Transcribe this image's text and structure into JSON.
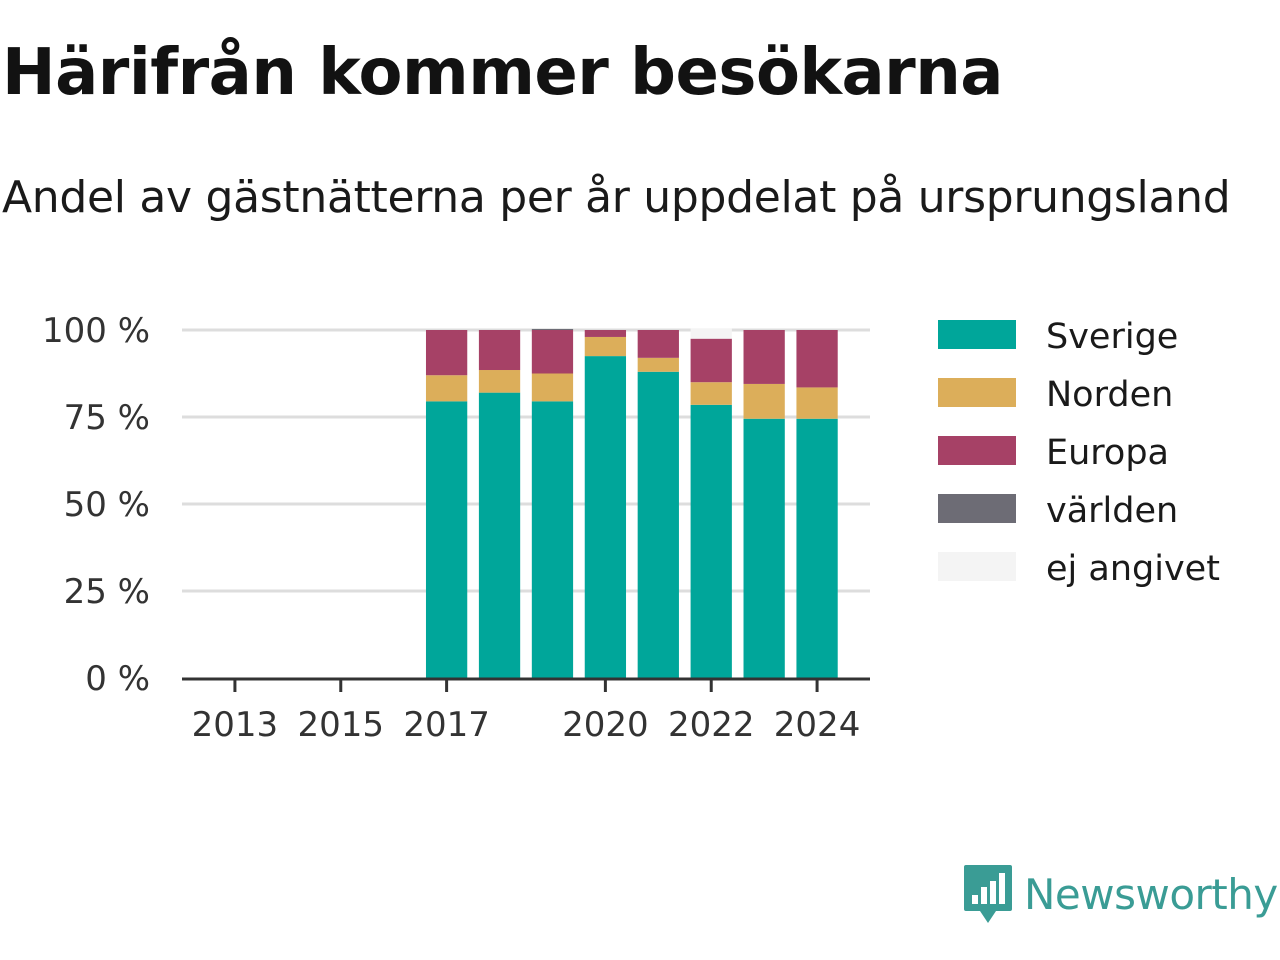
{
  "title": "Härifrån kommer besökarna",
  "subtitle": "Andel av gästnätterna per år uppdelat på ursprungsland",
  "logo_text": "Newsworthy",
  "chart_data": {
    "type": "bar",
    "stacked": true,
    "title": "Härifrån kommer besökarna",
    "subtitle": "Andel av gästnätterna per år uppdelat på ursprungsland",
    "x_range": [
      2012,
      2025
    ],
    "y_range": [
      0,
      100
    ],
    "y_ticks": [
      {
        "value": 0,
        "label": "0 %"
      },
      {
        "value": 25,
        "label": "25 %"
      },
      {
        "value": 50,
        "label": "50 %"
      },
      {
        "value": 75,
        "label": "75 %"
      },
      {
        "value": 100,
        "label": "100 %"
      }
    ],
    "x_ticks": [
      {
        "value": 2013,
        "label": "2013"
      },
      {
        "value": 2015,
        "label": "2015"
      },
      {
        "value": 2017,
        "label": "2017"
      },
      {
        "value": 2020,
        "label": "2020"
      },
      {
        "value": 2022,
        "label": "2022"
      },
      {
        "value": 2024,
        "label": "2024"
      }
    ],
    "grid": true,
    "legend_position": "right",
    "categories": [
      2017,
      2018,
      2019,
      2020,
      2021,
      2022,
      2023,
      2024
    ],
    "series": [
      {
        "name": "Sverige",
        "color": "#00a69a",
        "values": [
          79.5,
          82,
          79.5,
          92.5,
          88,
          78.5,
          74.5,
          74.5
        ]
      },
      {
        "name": "Norden",
        "color": "#dcae5a",
        "values": [
          7.5,
          6.5,
          8,
          5.5,
          4,
          6.5,
          10,
          9
        ]
      },
      {
        "name": "Europa",
        "color": "#a64166",
        "values": [
          13,
          11.5,
          12.5,
          2,
          8,
          12.5,
          15.5,
          16.5
        ]
      },
      {
        "name": "världen",
        "color": "#6d6c75",
        "values": [
          0,
          0,
          0.3,
          0,
          0,
          0,
          0,
          0
        ]
      },
      {
        "name": "ej angivet",
        "color": "#f4f4f4",
        "values": [
          0,
          0,
          0,
          0,
          0,
          3,
          0,
          0
        ]
      }
    ]
  }
}
